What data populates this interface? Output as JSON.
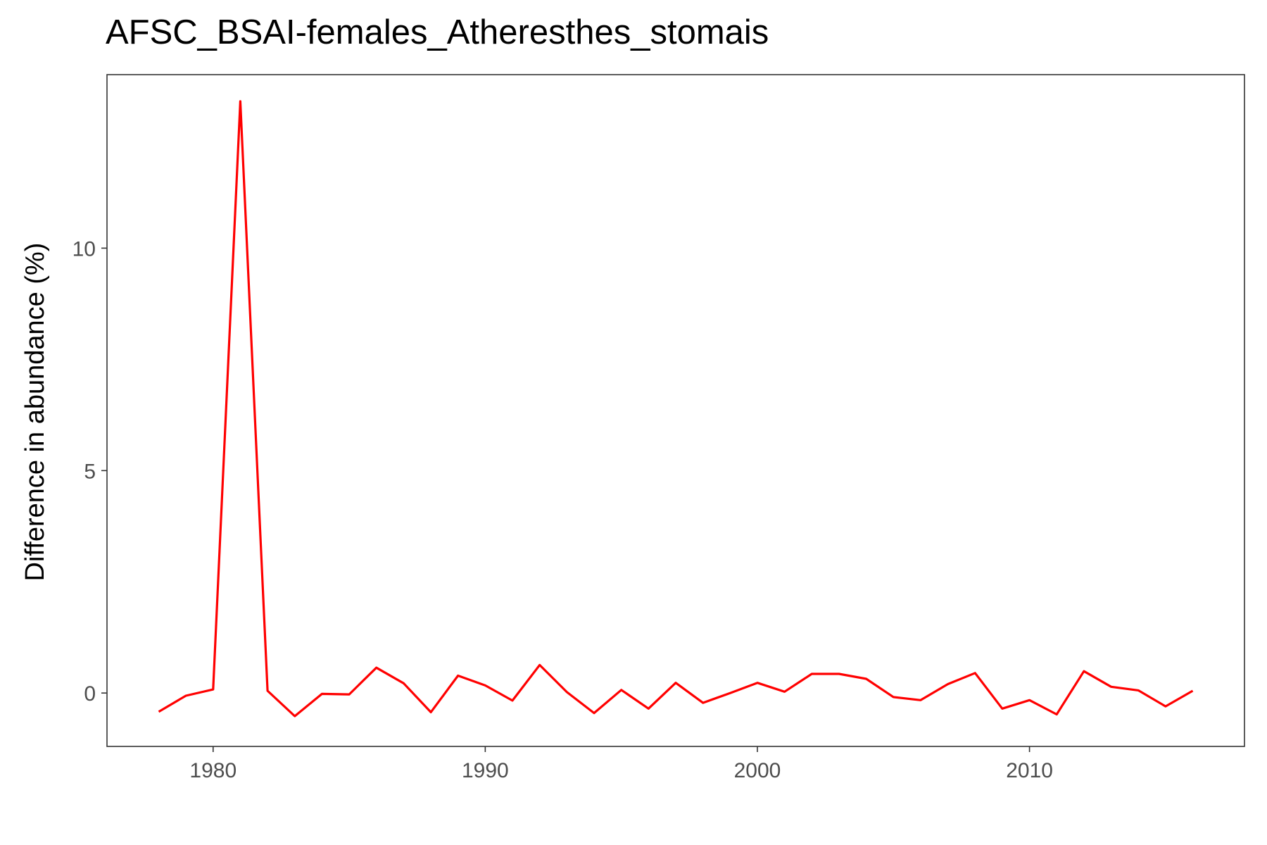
{
  "chart_data": {
    "type": "line",
    "title": "AFSC_BSAI-females_Atheresthes_stomais",
    "xlabel": "",
    "ylabel": "Difference in abundance (%)",
    "xlim": [
      1976.1,
      2017.9
    ],
    "ylim": [
      -1.2,
      13.9
    ],
    "xticks": [
      1980,
      1990,
      2000,
      2010
    ],
    "yticks": [
      0,
      5,
      10
    ],
    "grid": false,
    "legend": "none",
    "series": [
      {
        "color": "#ff0000",
        "x": [
          1978,
          1979,
          1980,
          1981,
          1982,
          1983,
          1984,
          1985,
          1986,
          1987,
          1988,
          1989,
          1990,
          1991,
          1992,
          1993,
          1994,
          1995,
          1996,
          1997,
          1998,
          1999,
          2000,
          2001,
          2002,
          2003,
          2004,
          2005,
          2006,
          2007,
          2008,
          2009,
          2010,
          2011,
          2012,
          2013,
          2014,
          2015,
          2016
        ],
        "y": [
          -0.42,
          -0.06,
          0.08,
          13.3,
          0.05,
          -0.52,
          -0.02,
          -0.03,
          0.57,
          0.22,
          -0.43,
          0.39,
          0.17,
          -0.17,
          0.63,
          0.02,
          -0.45,
          0.07,
          -0.35,
          0.23,
          -0.22,
          0.0,
          0.23,
          0.03,
          0.43,
          0.43,
          0.32,
          -0.09,
          -0.16,
          0.2,
          0.45,
          -0.35,
          -0.16,
          -0.48,
          0.49,
          0.14,
          0.06,
          -0.3,
          0.05
        ]
      }
    ]
  }
}
